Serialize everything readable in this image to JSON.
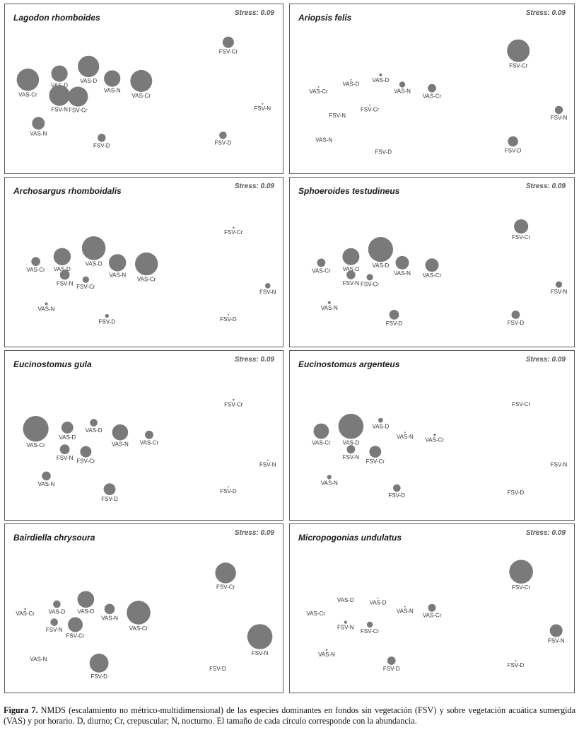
{
  "chart_data": [
    {
      "type": "scatter",
      "subtype": "bubble",
      "title": "Lagodon rhomboides",
      "stress": "Stress: 0.09",
      "points": [
        {
          "label": "VAS-Cr",
          "x": 0.06,
          "y": 0.61,
          "size": 0.75
        },
        {
          "label": "VAS-D",
          "x": 0.18,
          "y": 0.66,
          "size": 0.55
        },
        {
          "label": "VAS-D",
          "x": 0.29,
          "y": 0.72,
          "size": 0.72
        },
        {
          "label": "VAS-N",
          "x": 0.38,
          "y": 0.62,
          "size": 0.55
        },
        {
          "label": "VAS-Cr",
          "x": 0.49,
          "y": 0.6,
          "size": 0.74
        },
        {
          "label": "FSV-N",
          "x": 0.18,
          "y": 0.48,
          "size": 0.7
        },
        {
          "label": "FSV-Cr",
          "x": 0.25,
          "y": 0.47,
          "size": 0.67
        },
        {
          "label": "VAS-N",
          "x": 0.1,
          "y": 0.25,
          "size": 0.43
        },
        {
          "label": "FSV-D",
          "x": 0.34,
          "y": 0.13,
          "size": 0.27
        },
        {
          "label": "FSV-D",
          "x": 0.8,
          "y": 0.15,
          "size": 0.25
        },
        {
          "label": "FSV-Cr",
          "x": 0.82,
          "y": 0.92,
          "size": 0.38
        },
        {
          "label": "FSV-N",
          "x": 0.95,
          "y": 0.41,
          "size": 0.05
        }
      ]
    },
    {
      "type": "scatter",
      "subtype": "bubble",
      "title": "Ariopsis felis",
      "stress": "Stress: 0.09",
      "points": [
        {
          "label": "FSV-Cr",
          "x": 0.82,
          "y": 0.85,
          "size": 0.76
        },
        {
          "label": "VAS-Cr",
          "x": 0.08,
          "y": 0.55,
          "size": 0.04
        },
        {
          "label": "VAS-D",
          "x": 0.2,
          "y": 0.61,
          "size": 0.05
        },
        {
          "label": "VAS-D",
          "x": 0.31,
          "y": 0.65,
          "size": 0.1
        },
        {
          "label": "VAS-N",
          "x": 0.39,
          "y": 0.57,
          "size": 0.2
        },
        {
          "label": "VAS-Cr",
          "x": 0.5,
          "y": 0.54,
          "size": 0.28
        },
        {
          "label": "FSV-N",
          "x": 0.15,
          "y": 0.35,
          "size": 0.0
        },
        {
          "label": "FSV-Cr",
          "x": 0.27,
          "y": 0.4,
          "size": 0.04
        },
        {
          "label": "FSV-N",
          "x": 0.97,
          "y": 0.36,
          "size": 0.27
        },
        {
          "label": "VAS-N",
          "x": 0.1,
          "y": 0.15,
          "size": 0.0
        },
        {
          "label": "FSV-D",
          "x": 0.32,
          "y": 0.05,
          "size": 0.0
        },
        {
          "label": "FSV-D",
          "x": 0.8,
          "y": 0.1,
          "size": 0.35
        }
      ]
    },
    {
      "type": "scatter",
      "subtype": "bubble",
      "title": "Archosargus rhomboidalis",
      "stress": "Stress: 0.09",
      "points": [
        {
          "label": "FSV-Cr",
          "x": 0.84,
          "y": 0.82,
          "size": 0.06
        },
        {
          "label": "VAS-D",
          "x": 0.19,
          "y": 0.58,
          "size": 0.58
        },
        {
          "label": "VAS-D",
          "x": 0.31,
          "y": 0.65,
          "size": 0.8
        },
        {
          "label": "VAS-Cr",
          "x": 0.09,
          "y": 0.54,
          "size": 0.3
        },
        {
          "label": "VAS-N",
          "x": 0.4,
          "y": 0.53,
          "size": 0.58
        },
        {
          "label": "VAS-Cr",
          "x": 0.51,
          "y": 0.52,
          "size": 0.77
        },
        {
          "label": "FSV-N",
          "x": 0.2,
          "y": 0.43,
          "size": 0.33
        },
        {
          "label": "FSV-Cr",
          "x": 0.28,
          "y": 0.39,
          "size": 0.22
        },
        {
          "label": "FSV-N",
          "x": 0.97,
          "y": 0.34,
          "size": 0.18
        },
        {
          "label": "VAS-N",
          "x": 0.13,
          "y": 0.19,
          "size": 0.1
        },
        {
          "label": "FSV-D",
          "x": 0.36,
          "y": 0.09,
          "size": 0.13
        },
        {
          "label": "FSV-D",
          "x": 0.82,
          "y": 0.1,
          "size": 0.04
        }
      ]
    },
    {
      "type": "scatter",
      "subtype": "bubble",
      "title": "Sphoeroides testudineus",
      "stress": "Stress: 0.09",
      "points": [
        {
          "label": "FSV-Cr",
          "x": 0.83,
          "y": 0.83,
          "size": 0.48
        },
        {
          "label": "VAS-D",
          "x": 0.2,
          "y": 0.58,
          "size": 0.57
        },
        {
          "label": "VAS-D",
          "x": 0.31,
          "y": 0.64,
          "size": 0.84
        },
        {
          "label": "VAS-Cr",
          "x": 0.09,
          "y": 0.53,
          "size": 0.28
        },
        {
          "label": "VAS-N",
          "x": 0.39,
          "y": 0.53,
          "size": 0.45
        },
        {
          "label": "VAS-Cr",
          "x": 0.5,
          "y": 0.51,
          "size": 0.45
        },
        {
          "label": "FSV-N",
          "x": 0.2,
          "y": 0.43,
          "size": 0.3
        },
        {
          "label": "FSV-Cr",
          "x": 0.27,
          "y": 0.41,
          "size": 0.22
        },
        {
          "label": "FSV-N",
          "x": 0.97,
          "y": 0.35,
          "size": 0.22
        },
        {
          "label": "VAS-N",
          "x": 0.12,
          "y": 0.2,
          "size": 0.1
        },
        {
          "label": "FSV-D",
          "x": 0.36,
          "y": 0.1,
          "size": 0.33
        },
        {
          "label": "FSV-D",
          "x": 0.81,
          "y": 0.1,
          "size": 0.28
        }
      ]
    },
    {
      "type": "scatter",
      "subtype": "bubble",
      "title": "Eucinostomus gula",
      "stress": "Stress: 0.09",
      "points": [
        {
          "label": "FSV-Cr",
          "x": 0.84,
          "y": 0.83,
          "size": 0.06
        },
        {
          "label": "VAS-Cr",
          "x": 0.09,
          "y": 0.59,
          "size": 0.86
        },
        {
          "label": "VAS-D",
          "x": 0.21,
          "y": 0.6,
          "size": 0.4
        },
        {
          "label": "VAS-D",
          "x": 0.31,
          "y": 0.64,
          "size": 0.25
        },
        {
          "label": "VAS-N",
          "x": 0.41,
          "y": 0.56,
          "size": 0.54
        },
        {
          "label": "VAS-Cr",
          "x": 0.52,
          "y": 0.54,
          "size": 0.28
        },
        {
          "label": "FSV-N",
          "x": 0.2,
          "y": 0.42,
          "size": 0.33
        },
        {
          "label": "FSV-Cr",
          "x": 0.28,
          "y": 0.4,
          "size": 0.38
        },
        {
          "label": "FSV-N",
          "x": 0.97,
          "y": 0.33,
          "size": 0.04
        },
        {
          "label": "VAS-N",
          "x": 0.13,
          "y": 0.2,
          "size": 0.3
        },
        {
          "label": "FSV-D",
          "x": 0.37,
          "y": 0.09,
          "size": 0.4
        },
        {
          "label": "FSV-D",
          "x": 0.82,
          "y": 0.11,
          "size": 0.04
        }
      ]
    },
    {
      "type": "scatter",
      "subtype": "bubble",
      "title": "Eucinostomus argenteus",
      "stress": "Stress: 0.09",
      "points": [
        {
          "label": "FSV-Cr",
          "x": 0.83,
          "y": 0.83,
          "size": 0.0
        },
        {
          "label": "VAS-Cr",
          "x": 0.09,
          "y": 0.57,
          "size": 0.52
        },
        {
          "label": "VAS-D",
          "x": 0.2,
          "y": 0.61,
          "size": 0.85
        },
        {
          "label": "VAS-D",
          "x": 0.31,
          "y": 0.66,
          "size": 0.16
        },
        {
          "label": "VAS-N",
          "x": 0.4,
          "y": 0.56,
          "size": 0.04
        },
        {
          "label": "VAS-Cr",
          "x": 0.51,
          "y": 0.54,
          "size": 0.08
        },
        {
          "label": "FSV-N",
          "x": 0.2,
          "y": 0.42,
          "size": 0.28
        },
        {
          "label": "FSV-Cr",
          "x": 0.29,
          "y": 0.4,
          "size": 0.4
        },
        {
          "label": "FSV-N",
          "x": 0.97,
          "y": 0.33,
          "size": 0.0
        },
        {
          "label": "VAS-N",
          "x": 0.12,
          "y": 0.19,
          "size": 0.15
        },
        {
          "label": "FSV-D",
          "x": 0.37,
          "y": 0.1,
          "size": 0.25
        },
        {
          "label": "FSV-D",
          "x": 0.81,
          "y": 0.1,
          "size": 0.0
        }
      ]
    },
    {
      "type": "scatter",
      "subtype": "bubble",
      "title": "Bairdiella chrysoura",
      "stress": "Stress: 0.09",
      "points": [
        {
          "label": "FSV-Cr",
          "x": 0.81,
          "y": 0.83,
          "size": 0.7
        },
        {
          "label": "VAS-Cr",
          "x": 0.05,
          "y": 0.53,
          "size": 0.06
        },
        {
          "label": "VAS-D",
          "x": 0.17,
          "y": 0.57,
          "size": 0.25
        },
        {
          "label": "VAS-D",
          "x": 0.28,
          "y": 0.61,
          "size": 0.56
        },
        {
          "label": "VAS-N",
          "x": 0.37,
          "y": 0.53,
          "size": 0.35
        },
        {
          "label": "VAS-Cr",
          "x": 0.48,
          "y": 0.5,
          "size": 0.8
        },
        {
          "label": "FSV-N",
          "x": 0.16,
          "y": 0.42,
          "size": 0.25
        },
        {
          "label": "FSV-Cr",
          "x": 0.24,
          "y": 0.4,
          "size": 0.5
        },
        {
          "label": "FSV-N",
          "x": 0.94,
          "y": 0.3,
          "size": 0.85
        },
        {
          "label": "VAS-N",
          "x": 0.1,
          "y": 0.15,
          "size": 0.0
        },
        {
          "label": "FSV-D",
          "x": 0.33,
          "y": 0.08,
          "size": 0.64
        },
        {
          "label": "FSV-D",
          "x": 0.78,
          "y": 0.07,
          "size": 0.0
        }
      ]
    },
    {
      "type": "scatter",
      "subtype": "bubble",
      "title": "Micropogonias undulatus",
      "stress": "Stress: 0.09",
      "points": [
        {
          "label": "FSV-Cr",
          "x": 0.83,
          "y": 0.84,
          "size": 0.8
        },
        {
          "label": "VAS-D",
          "x": 0.18,
          "y": 0.64,
          "size": 0.0
        },
        {
          "label": "VAS-D",
          "x": 0.3,
          "y": 0.62,
          "size": 0.04
        },
        {
          "label": "VAS-Cr",
          "x": 0.07,
          "y": 0.53,
          "size": 0.0
        },
        {
          "label": "VAS-N",
          "x": 0.4,
          "y": 0.55,
          "size": 0.04
        },
        {
          "label": "VAS-Cr",
          "x": 0.5,
          "y": 0.54,
          "size": 0.26
        },
        {
          "label": "FSV-N",
          "x": 0.18,
          "y": 0.42,
          "size": 0.1
        },
        {
          "label": "FSV-Cr",
          "x": 0.27,
          "y": 0.4,
          "size": 0.2
        },
        {
          "label": "FSV-N",
          "x": 0.96,
          "y": 0.35,
          "size": 0.43
        },
        {
          "label": "VAS-N",
          "x": 0.11,
          "y": 0.19,
          "size": 0.06
        },
        {
          "label": "FSV-D",
          "x": 0.35,
          "y": 0.1,
          "size": 0.28
        },
        {
          "label": "FSV-D",
          "x": 0.81,
          "y": 0.1,
          "size": 0.04
        }
      ]
    }
  ],
  "caption": {
    "label": "Figura 7.",
    "text": " NMDS (escalamiento no métrico-multidimensional) de las especies dominantes en fondos sin vegetación (FSV) y sobre vegetación acuática sumergida (VAS) y por horario. D, diurno; Cr, crepuscular; N, nocturno. El tamaño de cada círculo corresponde con la abundancia."
  },
  "colors": {
    "bubble": "#7a7a7a",
    "border": "#5a5a5a",
    "text": "#333333"
  }
}
